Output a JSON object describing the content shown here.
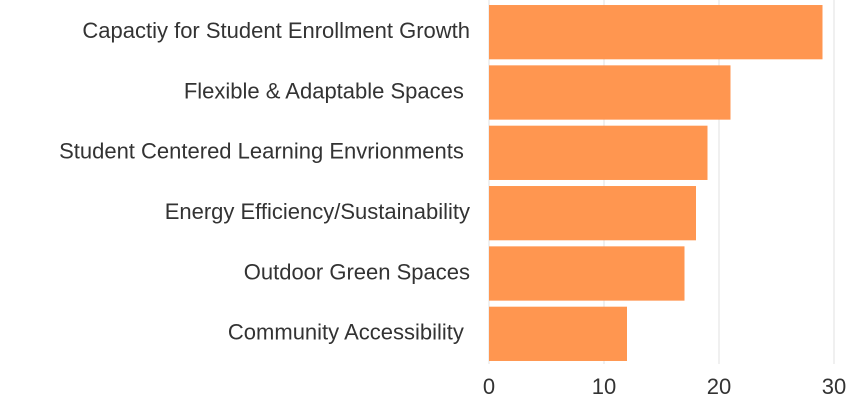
{
  "chart_data": {
    "type": "hbar",
    "categories": [
      "Capactiy for Student Enrollment Growth",
      "Flexible & Adaptable Spaces ",
      "Student Centered Learning Envrionments ",
      "Energy Efficiency/Sustainability",
      "Outdoor Green Spaces",
      "Community Accessibility "
    ],
    "values": [
      29,
      21,
      19,
      18,
      17,
      12
    ],
    "color": "#ff9650",
    "xlim": [
      0,
      30
    ],
    "xticks": [
      0,
      10,
      20,
      30
    ],
    "grid": true
  }
}
